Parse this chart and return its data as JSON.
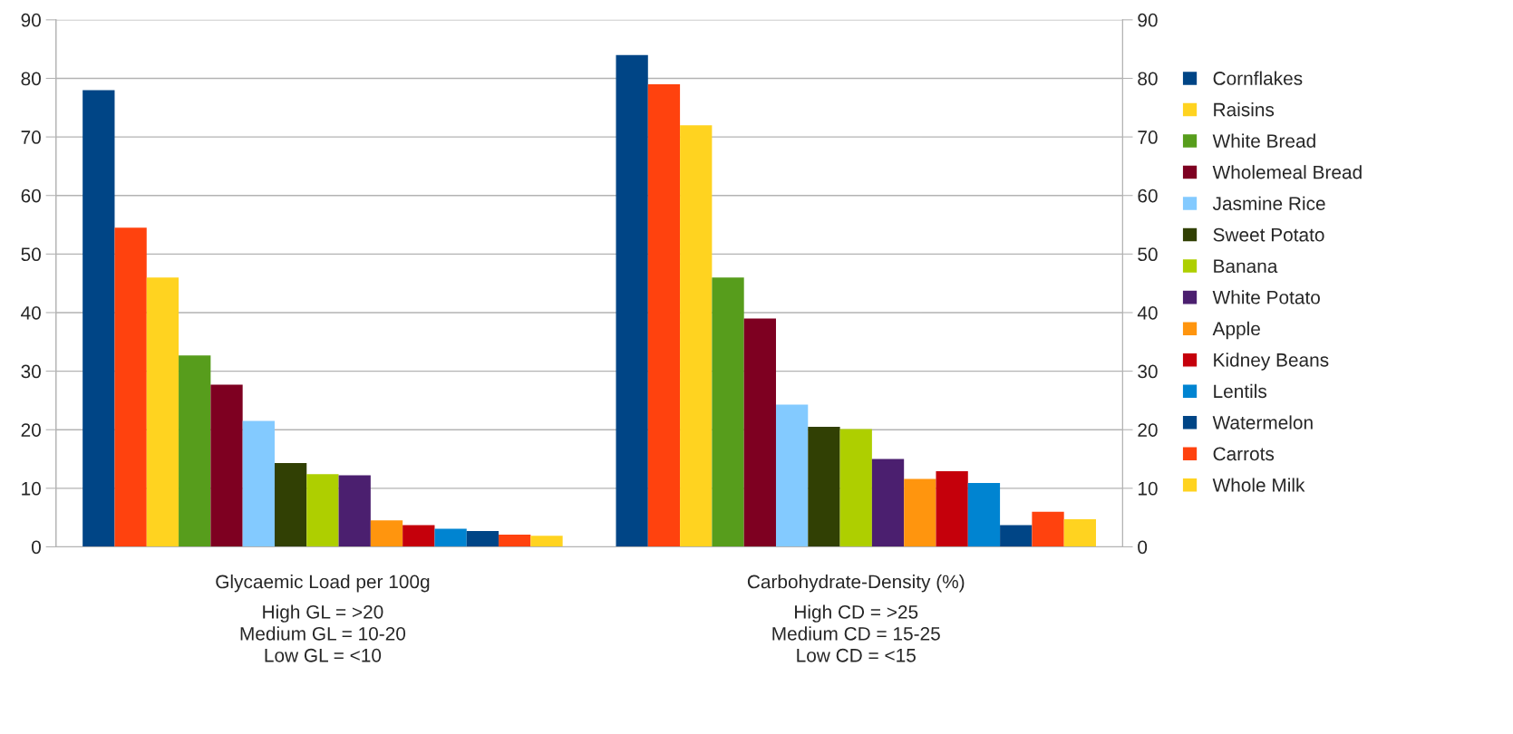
{
  "chart_data": {
    "type": "bar",
    "categories": [
      "Glycaemic Load per 100g",
      "Carbohydrate-Density (%)"
    ],
    "series": [
      {
        "name": "Cornflakes",
        "color": "#004586",
        "values": [
          78,
          84
        ]
      },
      {
        "color": "#ff420e",
        "values": [
          54.5,
          79
        ]
      },
      {
        "name": "Raisins",
        "color": "#ffd320",
        "values": [
          46,
          72
        ]
      },
      {
        "name": "White Bread",
        "color": "#579d1c",
        "values": [
          32.7,
          46
        ]
      },
      {
        "name": "Wholemeal Bread",
        "color": "#7e0021",
        "values": [
          27.7,
          39
        ]
      },
      {
        "name": "Jasmine Rice",
        "color": "#83caff",
        "values": [
          21.5,
          24.3
        ]
      },
      {
        "name": "Sweet Potato",
        "color": "#314004",
        "values": [
          14.3,
          20.5
        ]
      },
      {
        "name": "Banana",
        "color": "#aecf00",
        "values": [
          12.4,
          20.1
        ]
      },
      {
        "name": "White Potato",
        "color": "#4b1f6f",
        "values": [
          12.2,
          15
        ]
      },
      {
        "name": "Apple",
        "color": "#ff950e",
        "values": [
          4.5,
          11.6
        ]
      },
      {
        "name": "Kidney Beans",
        "color": "#c5000b",
        "values": [
          3.7,
          12.9
        ]
      },
      {
        "name": "Lentils",
        "color": "#0084d1",
        "values": [
          3.1,
          10.9
        ]
      },
      {
        "name": "Watermelon",
        "color": "#004586",
        "values": [
          2.7,
          3.7
        ]
      },
      {
        "name": "Carrots",
        "color": "#ff420e",
        "values": [
          2.1,
          6
        ]
      },
      {
        "name": "Whole Milk",
        "color": "#ffd320",
        "values": [
          1.9,
          4.7
        ]
      }
    ],
    "ylim": [
      0,
      90
    ],
    "yticks": [
      0,
      10,
      20,
      30,
      40,
      50,
      60,
      70,
      80,
      90
    ],
    "y2lim": [
      0,
      90
    ],
    "y2ticks": [
      0,
      10,
      20,
      30,
      40,
      50,
      60,
      70,
      80,
      90
    ],
    "annotations": [
      "High GL = >20\nMedium GL = 10-20\nLow GL = <10",
      "High CD = >25\nMedium CD = 15-25\nLow CD = <15"
    ],
    "grid": "y",
    "legend": "right"
  }
}
